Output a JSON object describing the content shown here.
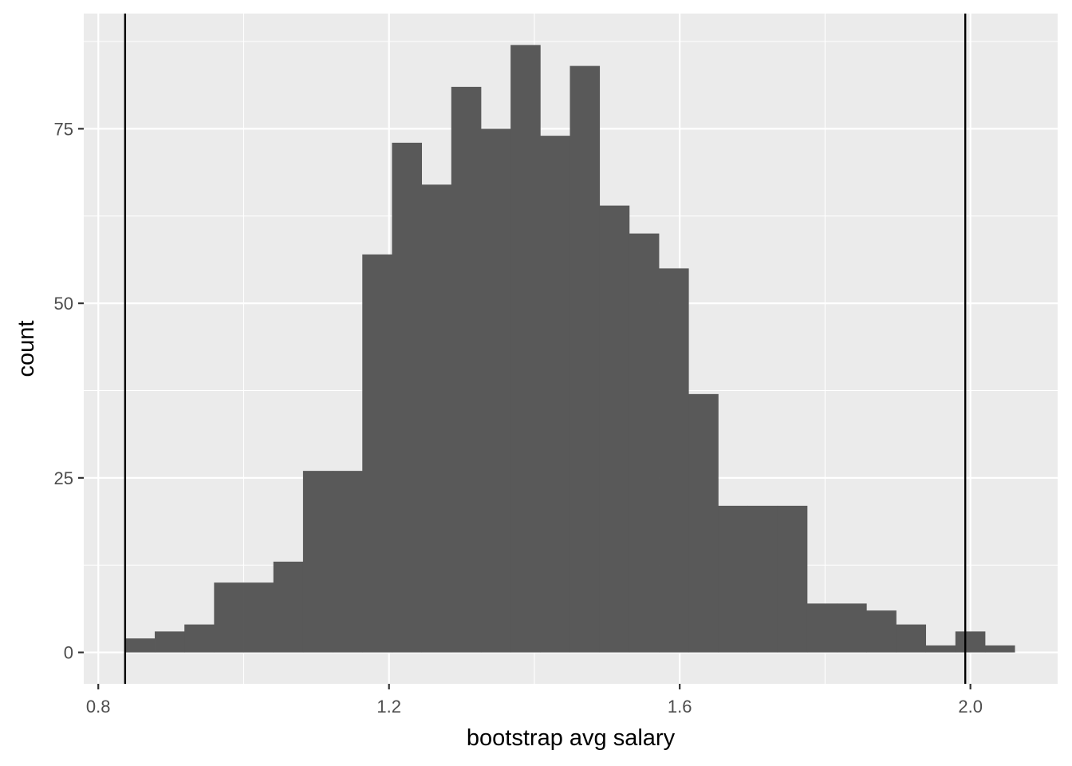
{
  "chart_data": {
    "type": "bar",
    "subtype": "histogram",
    "title": "",
    "xlabel": "bootstrap avg salary",
    "ylabel": "count",
    "xlim": [
      0.78,
      2.12
    ],
    "ylim": [
      -4.5,
      91.5
    ],
    "x_ticks": [
      {
        "value": 0.8,
        "label": "0.8"
      },
      {
        "value": 1.2,
        "label": "1.2"
      },
      {
        "value": 1.6,
        "label": "1.6"
      },
      {
        "value": 2.0,
        "label": "2.0"
      }
    ],
    "y_ticks": [
      {
        "value": 0,
        "label": "0"
      },
      {
        "value": 25,
        "label": "25"
      },
      {
        "value": 50,
        "label": "50"
      },
      {
        "value": 75,
        "label": "75"
      }
    ],
    "x_minor_gridlines": [
      1.0,
      1.4,
      1.8
    ],
    "y_minor_gridlines": [
      12.5,
      37.5,
      62.5,
      87.5
    ],
    "bin_start": 0.8369,
    "bin_width": 0.0408,
    "counts": [
      2,
      3,
      4,
      10,
      10,
      13,
      26,
      26,
      57,
      73,
      67,
      81,
      75,
      87,
      74,
      84,
      64,
      60,
      55,
      37,
      21,
      21,
      21,
      7,
      7,
      6,
      4,
      1,
      3,
      1
    ],
    "vlines": [
      0.8369,
      1.9929
    ],
    "grid": true,
    "legend": "none",
    "colors": {
      "panel_background": "#ebebeb",
      "grid": "#ffffff",
      "bar_fill": "#595959",
      "vline": "#000000",
      "tick_text": "#4d4d4d",
      "axis_text": "#000000"
    }
  }
}
